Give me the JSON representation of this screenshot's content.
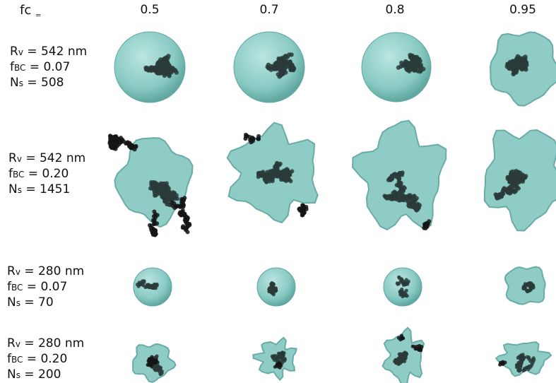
{
  "header": {
    "fc_label": "fc",
    "fc_eq": "=",
    "columns": [
      "0.5",
      "0.7",
      "0.8",
      "0.95"
    ]
  },
  "rows": [
    {
      "rv_label": "R",
      "rv_sub": "v",
      "rv_value": " = 542 nm",
      "fbc_label": "f",
      "fbc_sub": "BC",
      "fbc_value": " = 0.07",
      "ns_label": "N",
      "ns_sub": "s",
      "ns_value": " = 508"
    },
    {
      "rv_label": "R",
      "rv_sub": "v",
      "rv_value": " = 542 nm",
      "fbc_label": "f",
      "fbc_sub": "BC",
      "fbc_value": " = 0.20",
      "ns_label": "N",
      "ns_sub": "s",
      "ns_value": " = 1451"
    },
    {
      "rv_label": "R",
      "rv_sub": "v",
      "rv_value": " = 280 nm",
      "fbc_label": "f",
      "fbc_sub": "BC",
      "fbc_value": " = 0.07",
      "ns_label": "N",
      "ns_sub": "s",
      "ns_value": " = 70"
    },
    {
      "rv_label": "R",
      "rv_sub": "v",
      "rv_value": " = 280 nm",
      "fbc_label": "f",
      "fbc_sub": "BC",
      "fbc_value": " = 0.20",
      "ns_label": "N",
      "ns_sub": "s",
      "ns_value": " = 200"
    }
  ],
  "colors": {
    "coating": "#7cc4bd",
    "coating_edge": "#4f9e97",
    "particle": "#2a3b3a",
    "bare_particle": "#151515"
  }
}
